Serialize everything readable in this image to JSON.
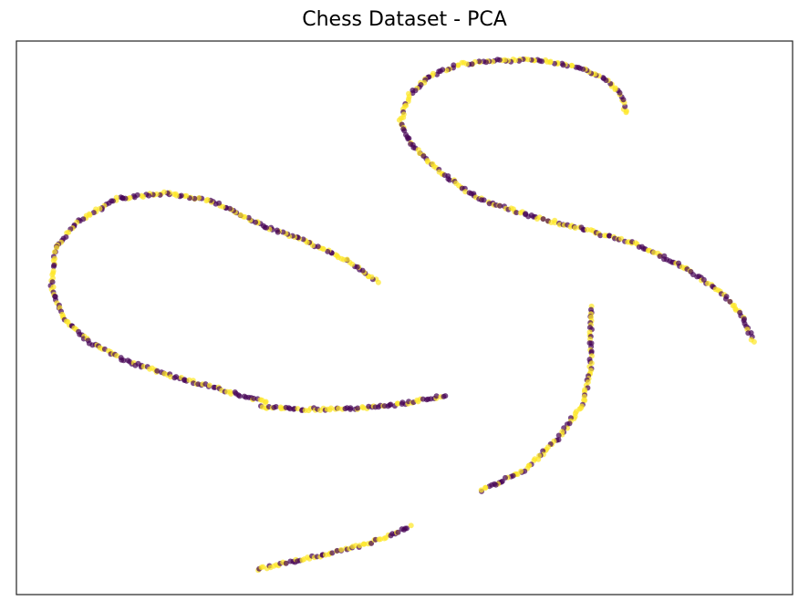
{
  "chart_data": {
    "type": "scatter",
    "title": "Chess Dataset - PCA",
    "xlabel": "",
    "ylabel": "",
    "xlim": [
      0,
      100
    ],
    "ylim": [
      0,
      100
    ],
    "grid": false,
    "axes_ticks": false,
    "legend": "none",
    "colors": {
      "class_0": "#440154",
      "class_1": "#fde725"
    },
    "point_alpha": 0.7,
    "curves": [
      {
        "name": "upper-right-arc",
        "points": [
          [
            78.5,
            87.0
          ],
          [
            78.0,
            90.0
          ],
          [
            76.0,
            93.0
          ],
          [
            72.0,
            95.5
          ],
          [
            67.5,
            96.5
          ],
          [
            62.5,
            96.5
          ],
          [
            57.0,
            95.8
          ],
          [
            53.0,
            93.5
          ],
          [
            50.5,
            90.0
          ],
          [
            49.5,
            85.5
          ],
          [
            51.0,
            81.0
          ],
          [
            54.5,
            76.5
          ],
          [
            59.5,
            71.5
          ],
          [
            66.0,
            68.5
          ],
          [
            73.0,
            66.0
          ],
          [
            79.5,
            63.5
          ],
          [
            85.5,
            59.5
          ],
          [
            90.5,
            55.0
          ],
          [
            93.5,
            50.5
          ],
          [
            95.0,
            45.5
          ]
        ]
      },
      {
        "name": "left-arc",
        "points": [
          [
            46.5,
            56.5
          ],
          [
            43.0,
            60.0
          ],
          [
            38.0,
            63.5
          ],
          [
            32.0,
            66.5
          ],
          [
            25.5,
            71.0
          ],
          [
            19.0,
            72.5
          ],
          [
            13.0,
            71.5
          ],
          [
            8.0,
            67.5
          ],
          [
            5.0,
            62.5
          ],
          [
            4.5,
            56.0
          ],
          [
            6.0,
            50.0
          ],
          [
            9.5,
            45.5
          ],
          [
            14.5,
            42.0
          ],
          [
            20.0,
            39.5
          ],
          [
            26.5,
            37.0
          ],
          [
            32.5,
            34.5
          ]
        ]
      },
      {
        "name": "middle-flat-segment",
        "points": [
          [
            31.5,
            34.0
          ],
          [
            36.0,
            33.5
          ],
          [
            41.0,
            33.5
          ],
          [
            46.0,
            33.8
          ],
          [
            51.0,
            34.8
          ],
          [
            55.5,
            36.0
          ]
        ]
      },
      {
        "name": "right-vertical-curve",
        "points": [
          [
            74.0,
            52.0
          ],
          [
            74.0,
            46.0
          ],
          [
            74.0,
            41.0
          ],
          [
            73.0,
            34.5
          ],
          [
            70.0,
            28.5
          ],
          [
            65.5,
            22.5
          ],
          [
            59.5,
            18.5
          ]
        ]
      },
      {
        "name": "bottom-line",
        "points": [
          [
            31.0,
            4.5
          ],
          [
            35.5,
            6.0
          ],
          [
            40.5,
            7.5
          ],
          [
            45.5,
            9.3
          ],
          [
            51.0,
            12.5
          ]
        ]
      }
    ]
  }
}
